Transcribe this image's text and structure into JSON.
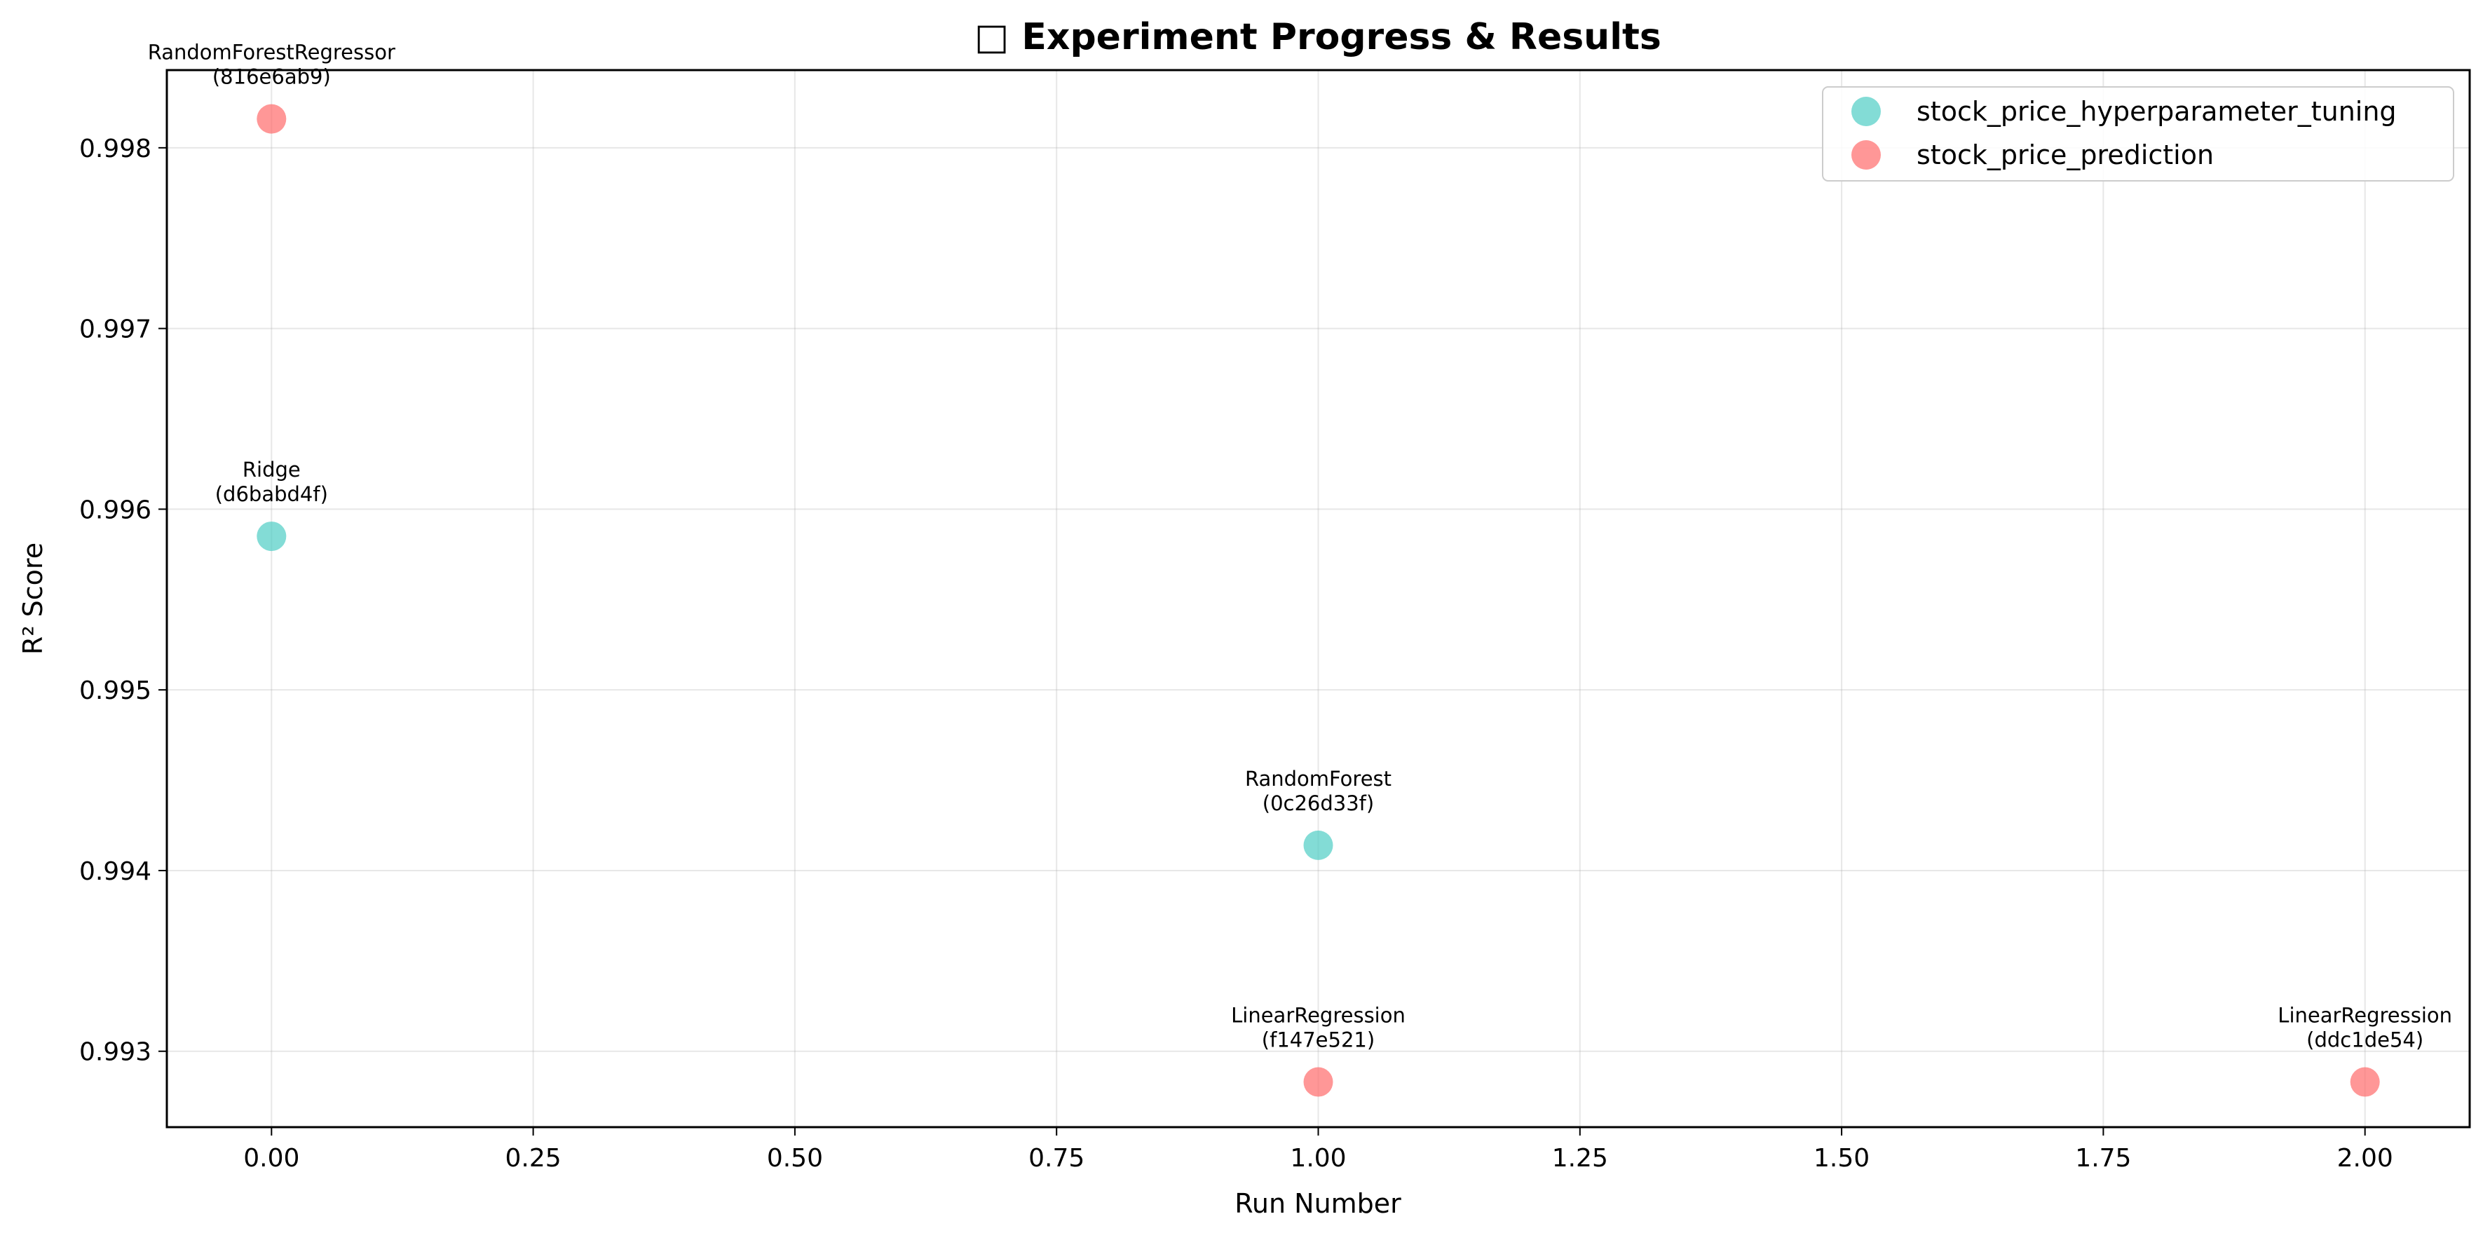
{
  "chart_data": {
    "type": "scatter",
    "title": "□ Experiment Progress & Results",
    "xlabel": "Run Number",
    "ylabel": "R² Score",
    "xlim": [
      -0.1,
      2.1
    ],
    "ylim": [
      0.99258,
      0.99843
    ],
    "xticks": [
      0.0,
      0.25,
      0.5,
      0.75,
      1.0,
      1.25,
      1.5,
      1.75,
      2.0
    ],
    "xtick_labels": [
      "0.00",
      "0.25",
      "0.50",
      "0.75",
      "1.00",
      "1.25",
      "1.50",
      "1.75",
      "2.00"
    ],
    "yticks": [
      0.993,
      0.994,
      0.995,
      0.996,
      0.997,
      0.998
    ],
    "ytick_labels": [
      "0.993",
      "0.994",
      "0.995",
      "0.996",
      "0.997",
      "0.998"
    ],
    "grid": true,
    "legend_position": "top-right",
    "series": [
      {
        "name": "stock_price_hyperparameter_tuning",
        "color": "#4ECDC4",
        "points": [
          {
            "x": 0,
            "y": 0.99585,
            "label_line1": "Ridge",
            "label_line2": "(d6babd4f)"
          },
          {
            "x": 1,
            "y": 0.99414,
            "label_line1": "RandomForest",
            "label_line2": "(0c26d33f)"
          }
        ]
      },
      {
        "name": "stock_price_prediction",
        "color": "#FF6B6B",
        "points": [
          {
            "x": 0,
            "y": 0.99816,
            "label_line1": "RandomForestRegressor",
            "label_line2": "(816e6ab9)"
          },
          {
            "x": 1,
            "y": 0.99283,
            "label_line1": "LinearRegression",
            "label_line2": "(f147e521)"
          },
          {
            "x": 2,
            "y": 0.99283,
            "label_line1": "LinearRegression",
            "label_line2": "(ddc1de54)"
          }
        ]
      }
    ]
  }
}
